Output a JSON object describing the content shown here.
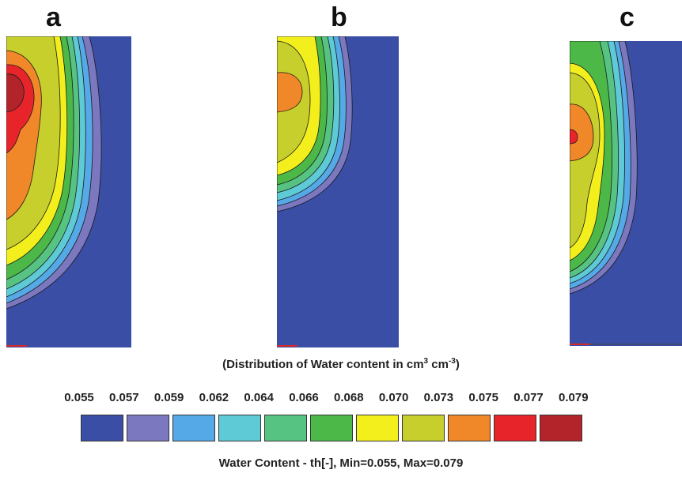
{
  "panels": [
    {
      "label": "a"
    },
    {
      "label": "b"
    },
    {
      "label": "c"
    }
  ],
  "caption": {
    "prefix": "(Distribution of Water content in cm",
    "sup1": "3",
    "middle": " cm",
    "sup2": "-3",
    "suffix": ")"
  },
  "colors": {
    "background_blue": "#3a4ea6",
    "contour_line": "#1a1a1a"
  },
  "chart_data": {
    "type": "heatmap",
    "title": "(Distribution of Water content in cm³ cm⁻³)",
    "colorbar": {
      "title": "Water Content  - th[-], Min=0.055, Max=0.079",
      "min": 0.055,
      "max": 0.079,
      "ticks": [
        "0.055",
        "0.057",
        "0.059",
        "0.062",
        "0.064",
        "0.066",
        "0.068",
        "0.070",
        "0.073",
        "0.075",
        "0.077",
        "0.079"
      ],
      "colors": [
        "#3a4ea6",
        "#7b78c0",
        "#55a9e6",
        "#5ecad6",
        "#57c383",
        "#4cb848",
        "#f3ef1d",
        "#c7cf2c",
        "#f0882a",
        "#e8242b",
        "#b3232a"
      ]
    },
    "panels": [
      {
        "label": "a",
        "peak_water_content": 0.079
      },
      {
        "label": "b",
        "peak_water_content": 0.075
      },
      {
        "label": "c",
        "peak_water_content": 0.077
      }
    ]
  }
}
